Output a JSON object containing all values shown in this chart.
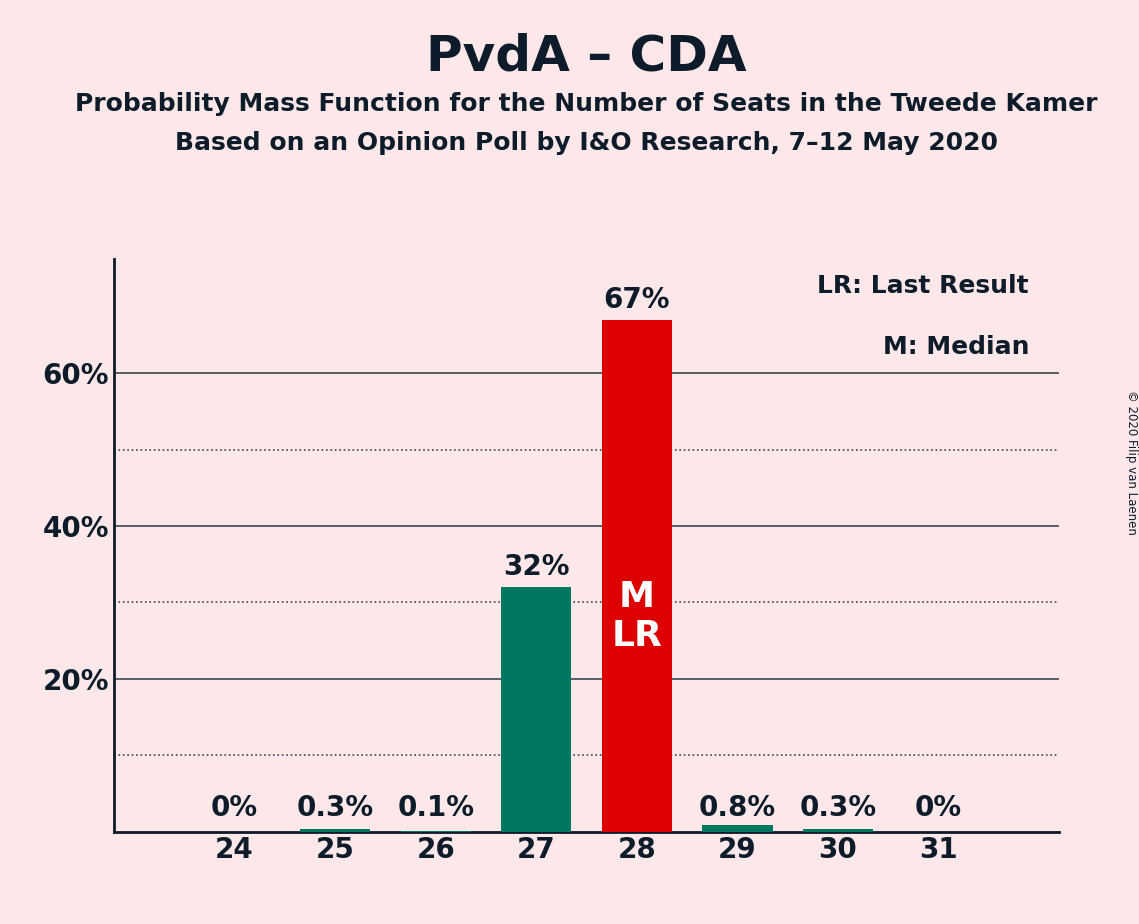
{
  "title": "PvdA – CDA",
  "subtitle1": "Probability Mass Function for the Number of Seats in the Tweede Kamer",
  "subtitle2": "Based on an Opinion Poll by I&O Research, 7–12 May 2020",
  "copyright": "© 2020 Filip van Laenen",
  "seats": [
    24,
    25,
    26,
    27,
    28,
    29,
    30,
    31
  ],
  "values": [
    0.0,
    0.3,
    0.1,
    32.0,
    67.0,
    0.8,
    0.3,
    0.0
  ],
  "bar_colors": [
    "#007860",
    "#007860",
    "#007860",
    "#007860",
    "#dd0000",
    "#007860",
    "#007860",
    "#007860"
  ],
  "median_seat": 28,
  "last_result_seat": 28,
  "legend_lr": "LR: Last Result",
  "legend_m": "M: Median",
  "background_color": "#fce8e8",
  "text_color": "#0d1b2a",
  "ylim": [
    0,
    75
  ],
  "solid_gridlines": [
    20,
    40,
    60
  ],
  "dotted_gridlines": [
    10,
    30,
    50
  ],
  "bar_width": 0.7,
  "title_fontsize": 36,
  "subtitle_fontsize": 18,
  "tick_fontsize": 20,
  "label_fontsize": 20,
  "legend_fontsize": 18,
  "mlr_fontsize": 26
}
